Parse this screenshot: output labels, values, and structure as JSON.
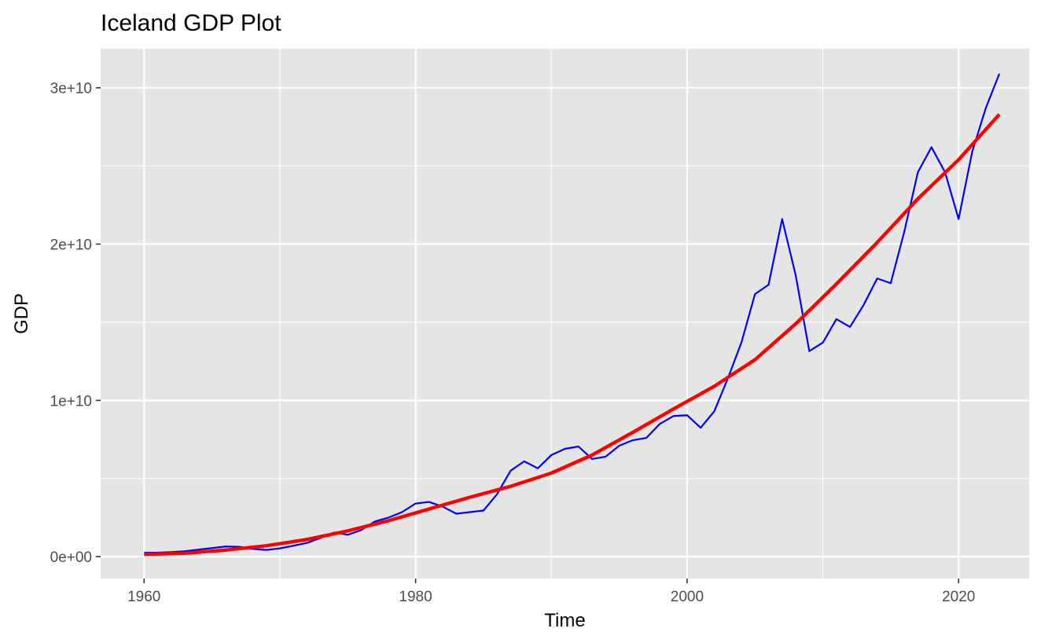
{
  "chart_data": {
    "type": "line",
    "title": "Iceland GDP Plot",
    "xlabel": "Time",
    "ylabel": "GDP",
    "xlim": [
      1956.8,
      2025.2
    ],
    "ylim": [
      -1400000000.0,
      32500000000.0
    ],
    "x_ticks": [
      {
        "value": 1960,
        "label": "1960"
      },
      {
        "value": 1980,
        "label": "1980"
      },
      {
        "value": 2000,
        "label": "2000"
      },
      {
        "value": 2020,
        "label": "2020"
      }
    ],
    "y_ticks": [
      {
        "value": 0,
        "label": "0e+00"
      },
      {
        "value": 10000000000,
        "label": "1e+10"
      },
      {
        "value": 20000000000,
        "label": "2e+10"
      },
      {
        "value": 30000000000,
        "label": "3e+10"
      }
    ],
    "grid": true,
    "panel_background": "#e5e5e5",
    "grid_color": "#ffffff",
    "series": [
      {
        "color": "#0000ff",
        "x": [
          1960,
          1961,
          1962,
          1963,
          1964,
          1965,
          1966,
          1967,
          1968,
          1969,
          1970,
          1971,
          1972,
          1973,
          1974,
          1975,
          1976,
          1977,
          1978,
          1979,
          1980,
          1981,
          1982,
          1983,
          1984,
          1985,
          1986,
          1987,
          1988,
          1989,
          1990,
          1991,
          1992,
          1993,
          1994,
          1995,
          1996,
          1997,
          1998,
          1999,
          2000,
          2001,
          2002,
          2003,
          2004,
          2005,
          2006,
          2007,
          2008,
          2009,
          2010,
          2011,
          2012,
          2013,
          2014,
          2015,
          2016,
          2017,
          2018,
          2019,
          2020,
          2021,
          2022,
          2023
        ],
        "y": [
          250000000.0,
          260000000.0,
          290000000.0,
          350000000.0,
          450000000.0,
          550000000.0,
          650000000.0,
          630000000.0,
          500000000.0,
          430000000.0,
          530000000.0,
          700000000.0,
          880000000.0,
          1200000000.0,
          1550000000.0,
          1400000000.0,
          1700000000.0,
          2250000000.0,
          2500000000.0,
          2850000000.0,
          3400000000.0,
          3500000000.0,
          3200000000.0,
          2750000000.0,
          2850000000.0,
          2950000000.0,
          4000000000.0,
          5500000000.0,
          6100000000.0,
          5650000000.0,
          6500000000.0,
          6900000000.0,
          7050000000.0,
          6250000000.0,
          6400000000.0,
          7100000000.0,
          7450000000.0,
          7600000000.0,
          8500000000.0,
          9000000000.0,
          9050000000.0,
          8250000000.0,
          9300000000.0,
          11400000000.0,
          13700000000.0,
          16800000000.0,
          17400000000.0,
          21600000000.0,
          18000000000.0,
          13150000000.0,
          13700000000.0,
          15200000000.0,
          14700000000.0,
          16100000000.0,
          17800000000.0,
          17500000000.0,
          20800000000.0,
          24600000000.0,
          26200000000.0,
          24600000000.0,
          21600000000.0,
          25900000000.0,
          28700000000.0,
          30900000000.0
        ]
      },
      {
        "color": "#ff0000",
        "x": [
          1960,
          1963,
          1966,
          1969,
          1972,
          1975,
          1978,
          1981,
          1984,
          1987,
          1990,
          1993,
          1996,
          1999,
          2002,
          2005,
          2008,
          2011,
          2014,
          2017,
          2020,
          2023
        ],
        "y": [
          150000000.0,
          220000000.0,
          420000000.0,
          700000000.0,
          1100000000.0,
          1650000000.0,
          2300000000.0,
          3050000000.0,
          3800000000.0,
          4500000000.0,
          5350000000.0,
          6500000000.0,
          7950000000.0,
          9450000000.0,
          10900000000.0,
          12600000000.0,
          14900000000.0,
          17450000000.0,
          20100000000.0,
          22900000000.0,
          25400000000.0,
          28300000000.0
        ]
      }
    ]
  }
}
